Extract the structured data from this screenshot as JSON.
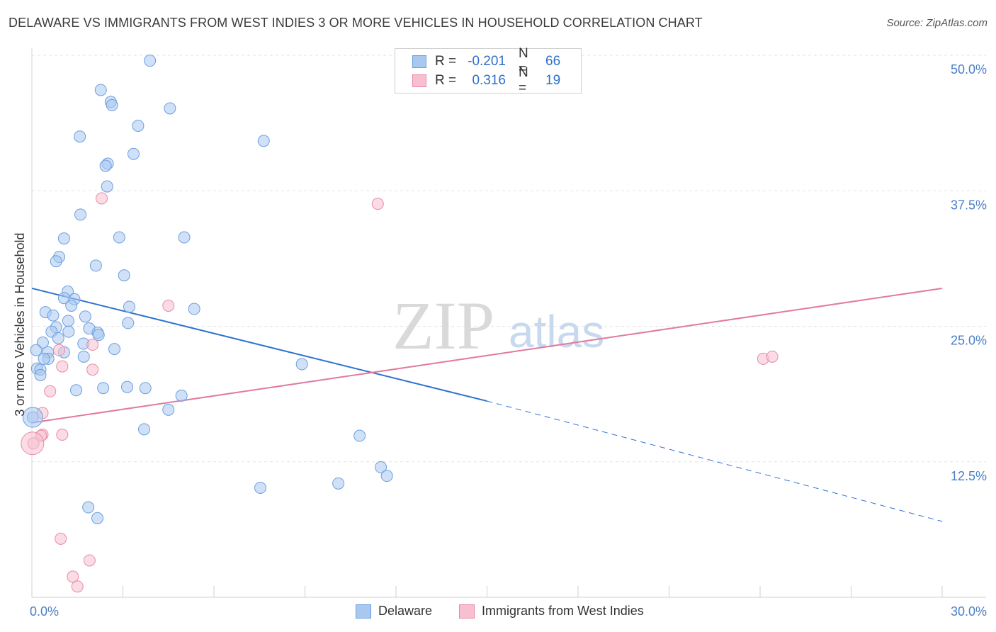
{
  "title": "DELAWARE VS IMMIGRANTS FROM WEST INDIES 3 OR MORE VEHICLES IN HOUSEHOLD CORRELATION CHART",
  "source": "Source: ZipAtlas.com",
  "watermark": {
    "zip": "ZIP",
    "atlas": "atlas"
  },
  "legend": {
    "rows": [
      {
        "r_label": "R =",
        "r_value": "-0.201",
        "n_label": "N =",
        "n_value": "66",
        "color": "#a9c8f0",
        "border": "#6a9fe0"
      },
      {
        "r_label": "R =",
        "r_value": "0.316",
        "n_label": "N =",
        "n_value": "19",
        "color": "#f7bfd0",
        "border": "#e88aa8"
      }
    ]
  },
  "bottom_legend": [
    {
      "label": "Delaware",
      "color": "#a9c8f0",
      "border": "#6a9fe0"
    },
    {
      "label": "Immigrants from West Indies",
      "color": "#f7bfd0",
      "border": "#e88aa8"
    }
  ],
  "chart_data": {
    "type": "scatter",
    "ylabel": "3 or more Vehicles in Household",
    "xlim": [
      0,
      30
    ],
    "ylim": [
      0,
      50
    ],
    "x_tick_labels": [
      {
        "value": 0,
        "label": "0.0%"
      },
      {
        "value": 30,
        "label": "30.0%"
      }
    ],
    "y_tick_labels": [
      {
        "value": 12.5,
        "label": "12.5%"
      },
      {
        "value": 25,
        "label": "25.0%"
      },
      {
        "value": 37.5,
        "label": "37.5%"
      },
      {
        "value": 50,
        "label": "50.0%"
      }
    ],
    "grid": true,
    "series": [
      {
        "name": "Delaware",
        "color": "#a9c8f0",
        "stroke": "#6a9fe0",
        "line_color": "#2e73d2",
        "trend": {
          "x0": 0,
          "y0": 28.5,
          "x1": 15,
          "y1": 18.1,
          "dash_to_x": 30,
          "dash_to_y": 7.0
        },
        "points": [
          [
            3.89,
            49.5
          ],
          [
            2.27,
            46.8
          ],
          [
            2.6,
            45.7
          ],
          [
            2.64,
            45.4
          ],
          [
            4.55,
            45.1
          ],
          [
            3.5,
            43.5
          ],
          [
            1.58,
            42.5
          ],
          [
            7.64,
            42.1
          ],
          [
            3.35,
            40.9
          ],
          [
            2.5,
            40.0
          ],
          [
            2.43,
            39.8
          ],
          [
            2.48,
            37.9
          ],
          [
            1.6,
            35.3
          ],
          [
            2.88,
            33.2
          ],
          [
            5.02,
            33.2
          ],
          [
            1.06,
            33.1
          ],
          [
            0.9,
            31.4
          ],
          [
            0.8,
            31.0
          ],
          [
            2.11,
            30.6
          ],
          [
            3.04,
            29.7
          ],
          [
            1.18,
            28.2
          ],
          [
            1.06,
            27.6
          ],
          [
            1.4,
            27.5
          ],
          [
            1.3,
            26.9
          ],
          [
            3.21,
            26.8
          ],
          [
            5.35,
            26.6
          ],
          [
            0.45,
            26.3
          ],
          [
            0.7,
            26.0
          ],
          [
            1.76,
            25.9
          ],
          [
            1.2,
            25.5
          ],
          [
            3.17,
            25.3
          ],
          [
            0.8,
            24.9
          ],
          [
            0.65,
            24.5
          ],
          [
            1.21,
            24.5
          ],
          [
            1.89,
            24.8
          ],
          [
            2.17,
            24.4
          ],
          [
            2.2,
            24.2
          ],
          [
            0.87,
            23.9
          ],
          [
            1.7,
            23.4
          ],
          [
            0.36,
            23.5
          ],
          [
            0.14,
            22.8
          ],
          [
            2.72,
            22.9
          ],
          [
            1.06,
            22.6
          ],
          [
            0.53,
            22.6
          ],
          [
            0.54,
            22.0
          ],
          [
            0.4,
            22.0
          ],
          [
            1.71,
            22.2
          ],
          [
            8.9,
            21.5
          ],
          [
            0.17,
            21.1
          ],
          [
            0.28,
            21.0
          ],
          [
            0.28,
            20.5
          ],
          [
            2.35,
            19.3
          ],
          [
            3.14,
            19.4
          ],
          [
            3.74,
            19.3
          ],
          [
            1.46,
            19.1
          ],
          [
            4.93,
            18.6
          ],
          [
            4.5,
            17.3
          ],
          [
            0.03,
            16.6
          ],
          [
            3.7,
            15.5
          ],
          [
            10.8,
            14.9
          ],
          [
            11.5,
            12.0
          ],
          [
            11.7,
            11.2
          ],
          [
            10.1,
            10.5
          ],
          [
            7.53,
            10.1
          ],
          [
            1.86,
            8.3
          ],
          [
            2.16,
            7.3
          ]
        ]
      },
      {
        "name": "Immigrants from West Indies",
        "color": "#f7bfd0",
        "stroke": "#e88aa8",
        "line_color": "#e27aa0",
        "trend": {
          "x0": 0,
          "y0": 16.1,
          "x1": 30,
          "y1": 28.5
        },
        "points": [
          [
            2.3,
            36.8
          ],
          [
            11.4,
            36.3
          ],
          [
            4.5,
            26.9
          ],
          [
            0.9,
            22.8
          ],
          [
            2.0,
            23.3
          ],
          [
            1.0,
            21.3
          ],
          [
            2.0,
            21.0
          ],
          [
            0.6,
            19.0
          ],
          [
            0.35,
            17.0
          ],
          [
            0.35,
            15.0
          ],
          [
            1.0,
            15.0
          ],
          [
            0.3,
            14.9
          ],
          [
            0.05,
            14.2
          ],
          [
            24.1,
            22.0
          ],
          [
            24.4,
            22.2
          ],
          [
            0.95,
            5.4
          ],
          [
            1.9,
            3.4
          ],
          [
            1.35,
            1.9
          ],
          [
            1.5,
            1.0
          ]
        ]
      }
    ]
  }
}
